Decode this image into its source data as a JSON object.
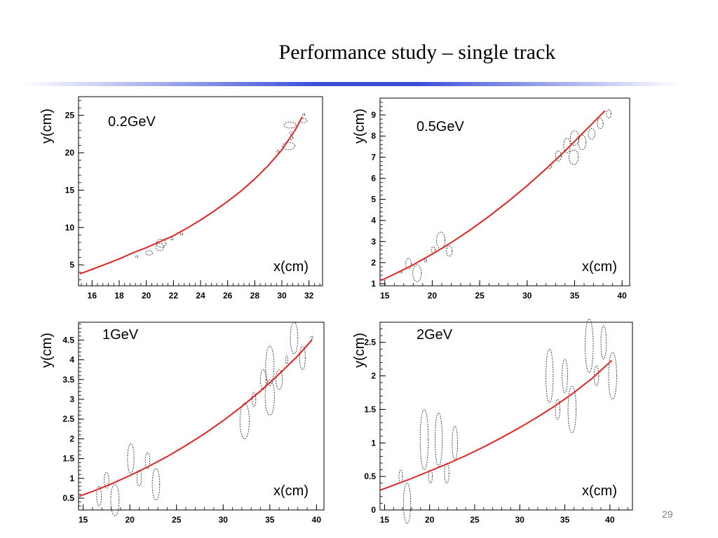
{
  "slide": {
    "title": "Performance study – single track",
    "page_number": "29"
  },
  "chart_data": [
    {
      "type": "scatter",
      "annotation": "0.2GeV",
      "xlabel": "x(cm)",
      "ylabel": "y(cm)",
      "xlim": [
        15,
        33
      ],
      "ylim": [
        2.2,
        27.5
      ],
      "xticks": [
        16,
        18,
        20,
        22,
        24,
        26,
        28,
        30,
        32
      ],
      "yticks": [
        5,
        10,
        15,
        20,
        25
      ],
      "fit_curve": {
        "color": "#e32222",
        "x": [
          15.1,
          16,
          17,
          18,
          19,
          20,
          21,
          22,
          23,
          24,
          25,
          26,
          27,
          28,
          29,
          30,
          31,
          31.5
        ],
        "y": [
          3.8,
          4.4,
          5.1,
          5.8,
          6.6,
          7.3,
          8.1,
          8.9,
          9.9,
          11.0,
          12.2,
          13.5,
          14.9,
          16.5,
          18.3,
          20.4,
          23.1,
          24.8
        ]
      },
      "points": [
        {
          "x": 19.3,
          "y": 6.1,
          "ex": 0.05,
          "ey": 0.15
        },
        {
          "x": 20.2,
          "y": 6.6,
          "ex": 0.25,
          "ey": 0.3
        },
        {
          "x": 21.0,
          "y": 7.4,
          "ex": 0.3,
          "ey": 0.5
        },
        {
          "x": 21.1,
          "y": 7.9,
          "ex": 0.35,
          "ey": 0.55
        },
        {
          "x": 21.9,
          "y": 8.5,
          "ex": 0.08,
          "ey": 0.2
        },
        {
          "x": 22.6,
          "y": 9.1,
          "ex": 0.05,
          "ey": 0.1
        },
        {
          "x": 29.7,
          "y": 20.2,
          "ex": 0.1,
          "ey": 0.15
        },
        {
          "x": 30.5,
          "y": 20.9,
          "ex": 0.45,
          "ey": 0.5
        },
        {
          "x": 30.7,
          "y": 22.0,
          "ex": 0.1,
          "ey": 0.3
        },
        {
          "x": 30.7,
          "y": 22.6,
          "ex": 0.15,
          "ey": 0.2
        },
        {
          "x": 30.6,
          "y": 23.7,
          "ex": 0.45,
          "ey": 0.4
        },
        {
          "x": 31.6,
          "y": 24.3,
          "ex": 0.25,
          "ey": 0.3
        },
        {
          "x": 31.6,
          "y": 25.1,
          "ex": 0.08,
          "ey": 0.1
        }
      ]
    },
    {
      "type": "scatter",
      "annotation": "0.5GeV",
      "xlabel": "x(cm)",
      "ylabel": "y(cm)",
      "xlim": [
        14.5,
        40.8
      ],
      "ylim": [
        0.9,
        9.8
      ],
      "xticks": [
        15,
        20,
        25,
        30,
        35,
        40
      ],
      "yticks": [
        1,
        2,
        3,
        4,
        5,
        6,
        7,
        8,
        9
      ],
      "fit_curve": {
        "color": "#e32222",
        "x": [
          14.6,
          16,
          18,
          20,
          22,
          24,
          26,
          28,
          30,
          32,
          34,
          36,
          38.2
        ],
        "y": [
          1.15,
          1.45,
          1.9,
          2.4,
          2.95,
          3.55,
          4.2,
          4.9,
          5.65,
          6.45,
          7.3,
          8.2,
          9.2
        ]
      },
      "points": [
        {
          "x": 16.7,
          "y": 1.55,
          "ex": 0.05,
          "ey": 0.05
        },
        {
          "x": 17.5,
          "y": 1.95,
          "ex": 0.3,
          "ey": 0.25
        },
        {
          "x": 18.4,
          "y": 1.5,
          "ex": 0.45,
          "ey": 0.4
        },
        {
          "x": 19.3,
          "y": 2.1,
          "ex": 0.1,
          "ey": 0.08
        },
        {
          "x": 20.1,
          "y": 2.6,
          "ex": 0.2,
          "ey": 0.15
        },
        {
          "x": 20.9,
          "y": 3.05,
          "ex": 0.45,
          "ey": 0.4
        },
        {
          "x": 21.8,
          "y": 2.55,
          "ex": 0.3,
          "ey": 0.25
        },
        {
          "x": 32.4,
          "y": 6.55,
          "ex": 0.15,
          "ey": 0.1
        },
        {
          "x": 33.3,
          "y": 7.05,
          "ex": 0.3,
          "ey": 0.25
        },
        {
          "x": 34.2,
          "y": 7.55,
          "ex": 0.35,
          "ey": 0.35
        },
        {
          "x": 34.9,
          "y": 7.0,
          "ex": 0.5,
          "ey": 0.35
        },
        {
          "x": 35.0,
          "y": 7.9,
          "ex": 0.45,
          "ey": 0.35
        },
        {
          "x": 35.8,
          "y": 7.7,
          "ex": 0.4,
          "ey": 0.35
        },
        {
          "x": 36.8,
          "y": 8.1,
          "ex": 0.35,
          "ey": 0.25
        },
        {
          "x": 37.7,
          "y": 8.6,
          "ex": 0.3,
          "ey": 0.25
        },
        {
          "x": 38.6,
          "y": 9.05,
          "ex": 0.25,
          "ey": 0.2
        }
      ]
    },
    {
      "type": "scatter",
      "annotation": "1GeV",
      "xlabel": "x(cm)",
      "ylabel": "y(cm)",
      "xlim": [
        14.5,
        40.8
      ],
      "ylim": [
        0.2,
        4.95
      ],
      "xticks": [
        15,
        20,
        25,
        30,
        35,
        40
      ],
      "yticks": [
        0.5,
        1,
        1.5,
        2,
        2.5,
        3,
        3.5,
        4,
        4.5
      ],
      "fit_curve": {
        "color": "#e32222",
        "x": [
          14.6,
          16,
          18,
          20,
          22,
          24,
          26,
          28,
          30,
          32,
          34,
          36,
          38,
          39.5
        ],
        "y": [
          0.55,
          0.67,
          0.86,
          1.07,
          1.3,
          1.55,
          1.83,
          2.13,
          2.46,
          2.82,
          3.21,
          3.64,
          4.1,
          4.5
        ]
      },
      "points": [
        {
          "x": 16.7,
          "y": 0.55,
          "ex": 0.25,
          "ey": 0.25
        },
        {
          "x": 17.5,
          "y": 0.95,
          "ex": 0.25,
          "ey": 0.2
        },
        {
          "x": 18.4,
          "y": 0.45,
          "ex": 0.45,
          "ey": 0.4
        },
        {
          "x": 20.1,
          "y": 1.5,
          "ex": 0.35,
          "ey": 0.38
        },
        {
          "x": 21.0,
          "y": 1.0,
          "ex": 0.25,
          "ey": 0.2
        },
        {
          "x": 21.9,
          "y": 1.45,
          "ex": 0.25,
          "ey": 0.2
        },
        {
          "x": 22.8,
          "y": 0.85,
          "ex": 0.4,
          "ey": 0.4
        },
        {
          "x": 32.3,
          "y": 2.45,
          "ex": 0.5,
          "ey": 0.45
        },
        {
          "x": 33.3,
          "y": 3.0,
          "ex": 0.2,
          "ey": 0.18
        },
        {
          "x": 34.3,
          "y": 3.5,
          "ex": 0.3,
          "ey": 0.25
        },
        {
          "x": 35.0,
          "y": 3.05,
          "ex": 0.5,
          "ey": 0.45
        },
        {
          "x": 35.0,
          "y": 3.85,
          "ex": 0.45,
          "ey": 0.5
        },
        {
          "x": 36.0,
          "y": 3.5,
          "ex": 0.35,
          "ey": 0.25
        },
        {
          "x": 36.8,
          "y": 4.0,
          "ex": 0.1,
          "ey": 0.1
        },
        {
          "x": 37.6,
          "y": 4.55,
          "ex": 0.4,
          "ey": 0.4
        },
        {
          "x": 38.5,
          "y": 4.05,
          "ex": 0.3,
          "ey": 0.3
        },
        {
          "x": 39.5,
          "y": 4.55,
          "ex": 0.05,
          "ey": 0.05
        }
      ]
    },
    {
      "type": "scatter",
      "annotation": "2GeV",
      "xlabel": "x(cm)",
      "ylabel": "y(cm)",
      "xlim": [
        14.5,
        42.5
      ],
      "ylim": [
        0,
        2.8
      ],
      "xticks": [
        15,
        20,
        25,
        30,
        35,
        40
      ],
      "yticks": [
        0,
        0.5,
        1,
        1.5,
        2,
        2.5
      ],
      "fit_curve": {
        "color": "#e32222",
        "x": [
          14.6,
          16,
          18,
          20,
          22,
          24,
          26,
          28,
          30,
          32,
          34,
          36,
          38,
          40.2
        ],
        "y": [
          0.3,
          0.37,
          0.47,
          0.58,
          0.69,
          0.81,
          0.94,
          1.08,
          1.23,
          1.39,
          1.56,
          1.75,
          1.96,
          2.23
        ]
      },
      "points": [
        {
          "x": 16.8,
          "y": 0.5,
          "ex": 0.2,
          "ey": 0.1
        },
        {
          "x": 17.5,
          "y": 0.1,
          "ex": 0.4,
          "ey": 0.3
        },
        {
          "x": 19.4,
          "y": 1.05,
          "ex": 0.45,
          "ey": 0.45
        },
        {
          "x": 20.1,
          "y": 0.5,
          "ex": 0.2,
          "ey": 0.1
        },
        {
          "x": 21.0,
          "y": 1.05,
          "ex": 0.4,
          "ey": 0.4
        },
        {
          "x": 21.9,
          "y": 0.55,
          "ex": 0.25,
          "ey": 0.15
        },
        {
          "x": 22.8,
          "y": 1.0,
          "ex": 0.3,
          "ey": 0.25
        },
        {
          "x": 33.3,
          "y": 2.0,
          "ex": 0.4,
          "ey": 0.4
        },
        {
          "x": 34.2,
          "y": 1.5,
          "ex": 0.25,
          "ey": 0.15
        },
        {
          "x": 35.0,
          "y": 2.0,
          "ex": 0.3,
          "ey": 0.25
        },
        {
          "x": 35.8,
          "y": 1.5,
          "ex": 0.45,
          "ey": 0.35
        },
        {
          "x": 37.7,
          "y": 2.45,
          "ex": 0.45,
          "ey": 0.4
        },
        {
          "x": 38.5,
          "y": 2.0,
          "ex": 0.25,
          "ey": 0.15
        },
        {
          "x": 39.3,
          "y": 2.5,
          "ex": 0.3,
          "ey": 0.25
        },
        {
          "x": 40.3,
          "y": 2.0,
          "ex": 0.45,
          "ey": 0.35
        }
      ]
    }
  ]
}
